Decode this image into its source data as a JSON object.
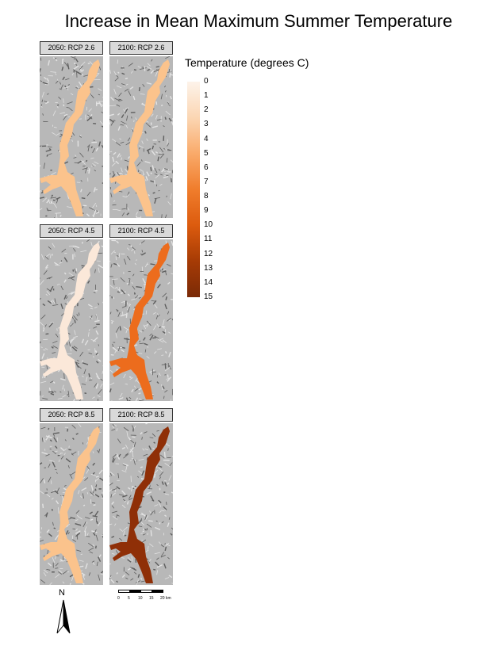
{
  "title": "Increase in Mean Maximum Summer Temperature",
  "panels": [
    {
      "label": "2050: RCP 2.6",
      "temperature": 5,
      "color": "#fbc38c"
    },
    {
      "label": "2100: RCP 2.6",
      "temperature": 5,
      "color": "#fbc38c"
    },
    {
      "label": "2050: RCP 4.5",
      "temperature": 2,
      "color": "#fbe8d9"
    },
    {
      "label": "2100: RCP 4.5",
      "temperature": 9,
      "color": "#ec6c1d"
    },
    {
      "label": "2050: RCP 8.5",
      "temperature": 5,
      "color": "#fbc38c"
    },
    {
      "label": "2100: RCP 8.5",
      "temperature": 14,
      "color": "#8f2f07"
    }
  ],
  "legend": {
    "title": "Temperature (degrees C)",
    "min": 0,
    "max": 15,
    "ticks": [
      "0",
      "1",
      "2",
      "3",
      "4",
      "5",
      "6",
      "7",
      "8",
      "9",
      "10",
      "11",
      "12",
      "13",
      "14",
      "15"
    ],
    "colors": [
      "#fdf3ea",
      "#fbd6b3",
      "#f9aa6a",
      "#f07d2c",
      "#dc5b0e",
      "#a63b05",
      "#7a2a07"
    ]
  },
  "north_arrow": {
    "label": "N"
  },
  "scale_bar": {
    "labels": [
      "0",
      "5",
      "10",
      "15",
      "20 km"
    ]
  },
  "hillshade_colors": {
    "light": "#e3e3e3",
    "mid": "#b8b8b8",
    "dark": "#5e5e5e"
  }
}
